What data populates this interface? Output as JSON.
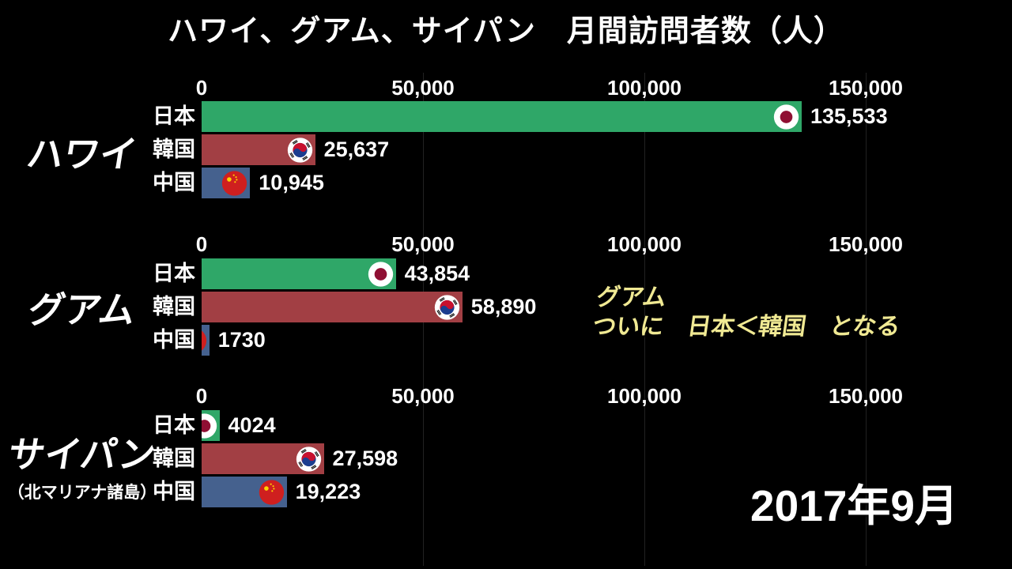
{
  "title": "ハワイ、グアム、サイパン　月間訪問者数（人）",
  "date_label": "2017年9月",
  "annotation": {
    "line1": "グアム",
    "line2": "ついに　日本＜韓国　となる",
    "color": "#f0e993"
  },
  "axis": {
    "ticks": [
      "0",
      "50,000",
      "100,000",
      "150,000"
    ],
    "tick_values": [
      0,
      50000,
      100000,
      150000
    ],
    "max": 150000
  },
  "colors": {
    "background": "#000000",
    "text": "#ffffff",
    "grid": "#222222",
    "bar_japan": "#2fa768",
    "bar_korea": "#a23f44",
    "bar_china": "#45618e",
    "flag_japan_red": "#8f0f33",
    "flag_korea_red": "#c8102e",
    "flag_korea_blue": "#1b3d8f",
    "flag_china_red": "#cf1f1f",
    "flag_star_yellow": "#ffd400"
  },
  "chart_data": [
    {
      "type": "bar",
      "group_label": "ハワイ",
      "categories": [
        "日本",
        "韓国",
        "中国"
      ],
      "values": [
        135533,
        25637,
        10945
      ],
      "value_labels": [
        "135,533",
        "25,637",
        "10,945"
      ],
      "flags": [
        "japan",
        "korea",
        "china"
      ],
      "xlim": [
        0,
        150000
      ]
    },
    {
      "type": "bar",
      "group_label": "グアム",
      "categories": [
        "日本",
        "韓国",
        "中国"
      ],
      "values": [
        43854,
        58890,
        1730
      ],
      "value_labels": [
        "43,854",
        "58,890",
        "1730"
      ],
      "flags": [
        "japan",
        "korea",
        "china"
      ],
      "xlim": [
        0,
        150000
      ]
    },
    {
      "type": "bar",
      "group_label": "サイパン",
      "group_sublabel": "（北マリアナ諸島）",
      "categories": [
        "日本",
        "韓国",
        "中国"
      ],
      "values": [
        4024,
        27598,
        19223
      ],
      "value_labels": [
        "4024",
        "27,598",
        "19,223"
      ],
      "flags": [
        "japan",
        "korea",
        "china"
      ],
      "xlim": [
        0,
        150000
      ]
    }
  ]
}
